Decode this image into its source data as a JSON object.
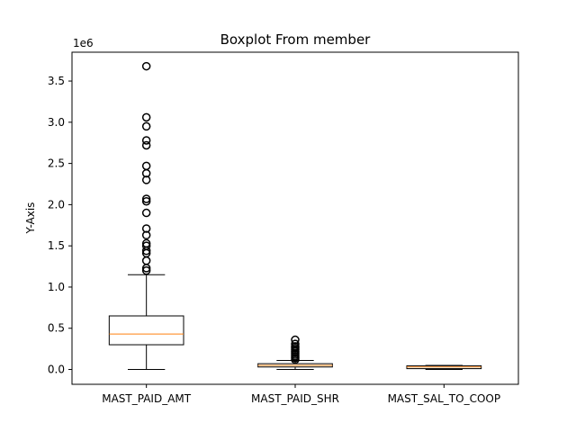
{
  "chart_data": {
    "type": "box",
    "title": "Boxplot From member",
    "xlabel": "",
    "ylabel": "Y-Axis",
    "y_offset_label": "1e6",
    "ylim": [
      -0.18,
      3.85
    ],
    "y_ticks": [
      0.0,
      0.5,
      1.0,
      1.5,
      2.0,
      2.5,
      3.0,
      3.5
    ],
    "y_tick_labels": [
      "0.0",
      "0.5",
      "1.0",
      "1.5",
      "2.0",
      "2.5",
      "3.0",
      "3.5"
    ],
    "grid": false,
    "box_color": "#000000",
    "median_color": "#ff7f0e",
    "categories": [
      "MAST_PAID_AMT",
      "MAST_PAID_SHR",
      "MAST_SAL_TO_COOP"
    ],
    "boxes": [
      {
        "label": "MAST_PAID_AMT",
        "whisker_low": 0.0,
        "q1": 0.3,
        "median": 0.43,
        "q3": 0.65,
        "whisker_high": 1.15,
        "outliers": [
          1.2,
          1.23,
          1.32,
          1.41,
          1.44,
          1.5,
          1.53,
          1.63,
          1.71,
          1.9,
          2.04,
          2.07,
          2.3,
          2.38,
          2.47,
          2.72,
          2.78,
          2.95,
          3.06,
          3.68
        ]
      },
      {
        "label": "MAST_PAID_SHR",
        "whisker_low": 0.0,
        "q1": 0.03,
        "median": 0.05,
        "q3": 0.07,
        "whisker_high": 0.11,
        "outliers": [
          0.12,
          0.14,
          0.16,
          0.18,
          0.2,
          0.22,
          0.24,
          0.26,
          0.28,
          0.31,
          0.36
        ]
      },
      {
        "label": "MAST_SAL_TO_COOP",
        "whisker_low": 0.0,
        "q1": 0.01,
        "median": 0.03,
        "q3": 0.045,
        "whisker_high": 0.05,
        "outliers": []
      }
    ]
  }
}
